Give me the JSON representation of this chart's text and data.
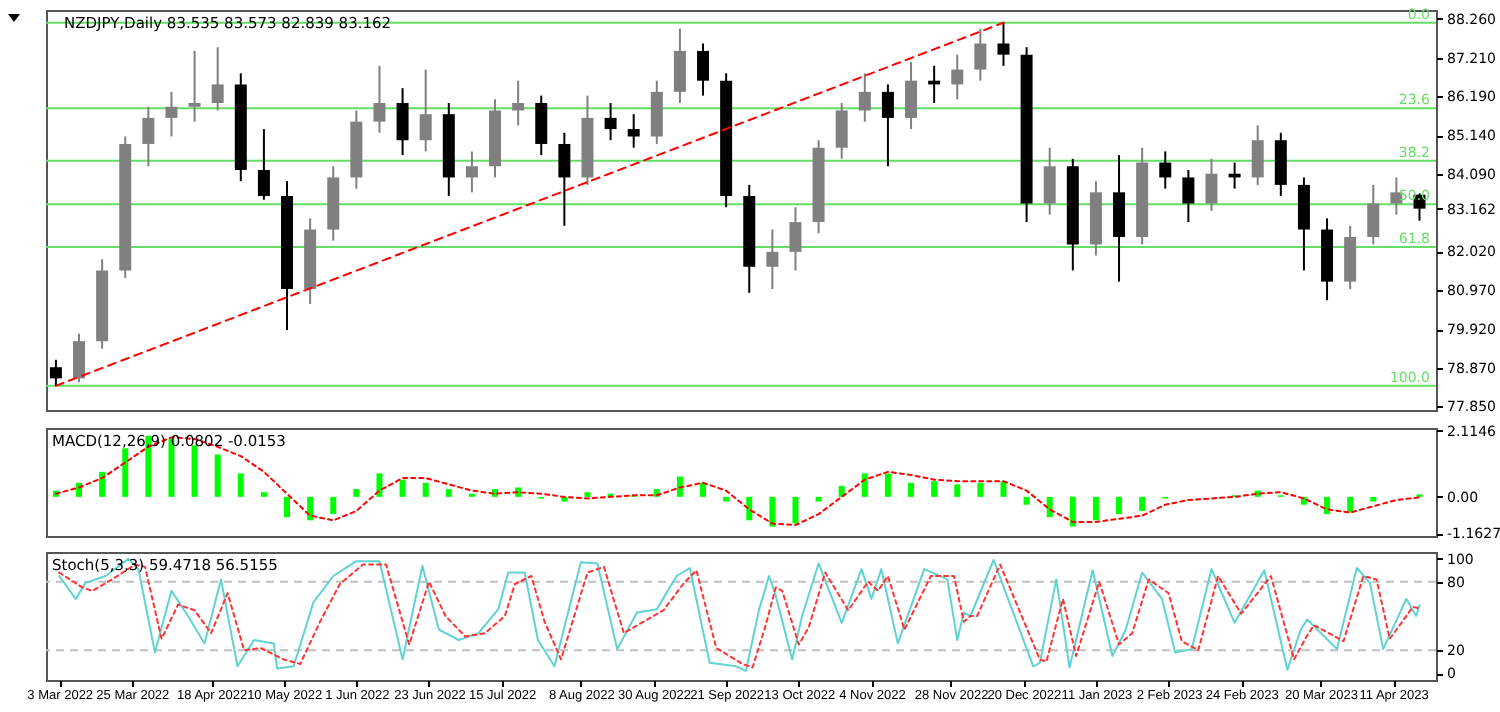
{
  "chart_data": [
    {
      "type": "candlestick",
      "title": "NZDJPY,Daily  83.535 83.573 82.839 83.162",
      "x": [
        "2022-03-02",
        "2022-03-09",
        "2022-03-16",
        "2022-03-23",
        "2022-03-30",
        "2022-04-06",
        "2022-04-13",
        "2022-04-20",
        "2022-04-27",
        "2022-05-04",
        "2022-05-11",
        "2022-05-18",
        "2022-05-25",
        "2022-06-01",
        "2022-06-08",
        "2022-06-15",
        "2022-06-22",
        "2022-06-29",
        "2022-07-06",
        "2022-07-13",
        "2022-07-20",
        "2022-07-27",
        "2022-08-03",
        "2022-08-10",
        "2022-08-17",
        "2022-08-24",
        "2022-08-31",
        "2022-09-07",
        "2022-09-14",
        "2022-09-21",
        "2022-09-28",
        "2022-10-05",
        "2022-10-12",
        "2022-10-19",
        "2022-10-26",
        "2022-11-02",
        "2022-11-09",
        "2022-11-16",
        "2022-11-23",
        "2022-11-30",
        "2022-12-07",
        "2022-12-14",
        "2022-12-21",
        "2022-12-28",
        "2023-01-04",
        "2023-01-11",
        "2023-01-18",
        "2023-01-25",
        "2023-02-01",
        "2023-02-08",
        "2023-02-15",
        "2023-02-22",
        "2023-03-01",
        "2023-03-08",
        "2023-03-15",
        "2023-03-22",
        "2023-03-29",
        "2023-04-05",
        "2023-04-12",
        "2023-04-19"
      ],
      "ohlc": [
        [
          78.9,
          79.1,
          78.4,
          78.6
        ],
        [
          78.6,
          79.8,
          78.5,
          79.6
        ],
        [
          79.6,
          81.8,
          79.4,
          81.5
        ],
        [
          81.5,
          85.1,
          81.3,
          84.9
        ],
        [
          84.9,
          85.9,
          84.3,
          85.6
        ],
        [
          85.6,
          86.3,
          85.1,
          85.9
        ],
        [
          85.9,
          87.4,
          85.5,
          86.0
        ],
        [
          86.0,
          87.5,
          85.8,
          86.5
        ],
        [
          86.5,
          86.8,
          83.9,
          84.2
        ],
        [
          84.2,
          85.3,
          83.4,
          83.5
        ],
        [
          83.5,
          83.9,
          79.9,
          81.0
        ],
        [
          81.0,
          82.9,
          80.6,
          82.6
        ],
        [
          82.6,
          84.3,
          82.3,
          84.0
        ],
        [
          84.0,
          85.8,
          83.7,
          85.5
        ],
        [
          85.5,
          87.0,
          85.2,
          86.0
        ],
        [
          86.0,
          86.4,
          84.6,
          85.0
        ],
        [
          85.0,
          86.9,
          84.7,
          85.7
        ],
        [
          85.7,
          86.0,
          83.5,
          84.0
        ],
        [
          84.0,
          84.7,
          83.6,
          84.3
        ],
        [
          84.3,
          86.1,
          84.0,
          85.8
        ],
        [
          85.8,
          86.6,
          85.4,
          86.0
        ],
        [
          86.0,
          86.2,
          84.6,
          84.9
        ],
        [
          84.9,
          85.2,
          82.7,
          84.0
        ],
        [
          84.0,
          86.2,
          83.8,
          85.6
        ],
        [
          85.6,
          86.0,
          85.0,
          85.3
        ],
        [
          85.3,
          85.7,
          84.8,
          85.1
        ],
        [
          85.1,
          86.6,
          84.9,
          86.3
        ],
        [
          86.3,
          88.0,
          86.0,
          87.4
        ],
        [
          87.4,
          87.6,
          86.2,
          86.6
        ],
        [
          86.6,
          86.8,
          83.2,
          83.5
        ],
        [
          83.5,
          83.8,
          80.9,
          81.6
        ],
        [
          81.6,
          82.6,
          81.0,
          82.0
        ],
        [
          82.0,
          83.2,
          81.5,
          82.8
        ],
        [
          82.8,
          85.0,
          82.5,
          84.8
        ],
        [
          84.8,
          86.0,
          84.5,
          85.8
        ],
        [
          85.8,
          86.8,
          85.5,
          86.3
        ],
        [
          86.3,
          86.5,
          84.3,
          85.6
        ],
        [
          85.6,
          87.1,
          85.3,
          86.6
        ],
        [
          86.6,
          87.0,
          86.0,
          86.5
        ],
        [
          86.5,
          87.3,
          86.1,
          86.9
        ],
        [
          86.9,
          88.0,
          86.6,
          87.6
        ],
        [
          87.6,
          88.16,
          87.0,
          87.3
        ],
        [
          87.3,
          87.5,
          82.8,
          83.3
        ],
        [
          83.3,
          84.8,
          83.0,
          84.3
        ],
        [
          84.3,
          84.5,
          81.5,
          82.2
        ],
        [
          82.2,
          83.9,
          81.9,
          83.6
        ],
        [
          83.6,
          84.6,
          81.2,
          82.4
        ],
        [
          82.4,
          84.8,
          82.2,
          84.4
        ],
        [
          84.4,
          84.7,
          83.7,
          84.0
        ],
        [
          84.0,
          84.2,
          82.8,
          83.3
        ],
        [
          83.3,
          84.5,
          83.1,
          84.1
        ],
        [
          84.1,
          84.4,
          83.7,
          84.0
        ],
        [
          84.0,
          85.4,
          83.8,
          85.0
        ],
        [
          85.0,
          85.2,
          83.5,
          83.8
        ],
        [
          83.8,
          84.0,
          81.5,
          82.6
        ],
        [
          82.6,
          82.9,
          80.7,
          81.2
        ],
        [
          81.2,
          82.7,
          81.0,
          82.4
        ],
        [
          82.4,
          83.8,
          82.2,
          83.3
        ],
        [
          83.3,
          84.0,
          83.0,
          83.6
        ],
        [
          83.535,
          83.573,
          82.839,
          83.162
        ]
      ],
      "colors": [
        "#000000",
        "#808080",
        "#808080",
        "#808080",
        "#808080",
        "#808080",
        "#808080",
        "#808080",
        "#000000",
        "#000000",
        "#000000",
        "#808080",
        "#808080",
        "#808080",
        "#808080",
        "#000000",
        "#808080",
        "#000000",
        "#808080",
        "#808080",
        "#808080",
        "#000000",
        "#000000",
        "#808080",
        "#000000",
        "#000000",
        "#808080",
        "#808080",
        "#000000",
        "#000000",
        "#000000",
        "#808080",
        "#808080",
        "#808080",
        "#808080",
        "#808080",
        "#000000",
        "#808080",
        "#000000",
        "#808080",
        "#808080",
        "#000000",
        "#000000",
        "#808080",
        "#000000",
        "#808080",
        "#000000",
        "#808080",
        "#000000",
        "#000000",
        "#808080",
        "#000000",
        "#808080",
        "#000000",
        "#000000",
        "#000000",
        "#808080",
        "#808080",
        "#808080",
        "#000000"
      ],
      "series": [
        {
          "type": "line",
          "x": [
            "2022-03-02",
            "2022-12-14"
          ],
          "values": [
            78.4,
            88.16
          ],
          "color": "#ff0000",
          "line_style": "dashed"
        }
      ],
      "ref_lines": [
        {
          "axis": "y",
          "value": 88.16,
          "color": "#66dd66"
        },
        {
          "axis": "y",
          "value": 85.86,
          "color": "#66dd66"
        },
        {
          "axis": "y",
          "value": 84.45,
          "color": "#66dd66"
        },
        {
          "axis": "y",
          "value": 83.28,
          "color": "#66dd66"
        },
        {
          "axis": "y",
          "value": 82.13,
          "color": "#66dd66"
        },
        {
          "axis": "y",
          "value": 78.4,
          "color": "#66dd66"
        }
      ],
      "annotations": [
        "0.0",
        "23.6",
        "38.2",
        "50.0",
        "61.8",
        "100.0"
      ],
      "xlim": [
        "2022-02-27",
        "2023-04-24"
      ],
      "ylim": [
        77.75,
        88.5
      ],
      "yticks": [
        {
          "value": 88.26,
          "label": "88.260"
        },
        {
          "value": 87.21,
          "label": "87.210"
        },
        {
          "value": 86.19,
          "label": "86.190"
        },
        {
          "value": 85.14,
          "label": "85.140"
        },
        {
          "value": 84.09,
          "label": "84.090"
        },
        {
          "value": 83.162,
          "label": "83.162"
        },
        {
          "value": 82.02,
          "label": "82.020"
        },
        {
          "value": 80.97,
          "label": "80.970"
        },
        {
          "value": 79.92,
          "label": "79.920"
        },
        {
          "value": 78.87,
          "label": "78.870"
        },
        {
          "value": 77.85,
          "label": "77.850"
        }
      ],
      "tick_labels": "y"
    },
    {
      "type": "bar",
      "title": "MACD(12,26,9) 0.0802 -0.0153",
      "x": [
        "2022-03-02",
        "2022-03-09",
        "2022-03-16",
        "2022-03-23",
        "2022-03-30",
        "2022-04-06",
        "2022-04-13",
        "2022-04-20",
        "2022-04-27",
        "2022-05-04",
        "2022-05-11",
        "2022-05-18",
        "2022-05-25",
        "2022-06-01",
        "2022-06-08",
        "2022-06-15",
        "2022-06-22",
        "2022-06-29",
        "2022-07-06",
        "2022-07-13",
        "2022-07-20",
        "2022-07-27",
        "2022-08-03",
        "2022-08-10",
        "2022-08-17",
        "2022-08-24",
        "2022-08-31",
        "2022-09-07",
        "2022-09-14",
        "2022-09-21",
        "2022-09-28",
        "2022-10-05",
        "2022-10-12",
        "2022-10-19",
        "2022-10-26",
        "2022-11-02",
        "2022-11-09",
        "2022-11-16",
        "2022-11-23",
        "2022-11-30",
        "2022-12-07",
        "2022-12-14",
        "2022-12-21",
        "2022-12-28",
        "2023-01-04",
        "2023-01-11",
        "2023-01-18",
        "2023-01-25",
        "2023-02-01",
        "2023-02-08",
        "2023-02-15",
        "2023-02-22",
        "2023-03-01",
        "2023-03-08",
        "2023-03-15",
        "2023-03-22",
        "2023-03-29",
        "2023-04-05",
        "2023-04-12",
        "2023-04-19"
      ],
      "series": [
        {
          "type": "bar",
          "color": "#00ff00",
          "values": [
            0.2,
            0.45,
            0.8,
            1.55,
            1.95,
            1.85,
            1.65,
            1.35,
            0.75,
            0.15,
            -0.65,
            -0.75,
            -0.55,
            0.25,
            0.75,
            0.55,
            0.45,
            0.25,
            0.1,
            0.25,
            0.3,
            -0.05,
            -0.15,
            0.15,
            0.1,
            0.05,
            0.25,
            0.65,
            0.45,
            -0.15,
            -0.75,
            -0.95,
            -0.85,
            -0.15,
            0.35,
            0.75,
            0.75,
            0.45,
            0.5,
            0.4,
            0.45,
            0.5,
            -0.25,
            -0.65,
            -0.95,
            -0.75,
            -0.55,
            -0.45,
            -0.05,
            null,
            null,
            0.05,
            0.2,
            0.05,
            -0.25,
            -0.55,
            -0.5,
            -0.15,
            null,
            0.0802
          ]
        },
        {
          "type": "line",
          "color": "#ff0000",
          "line_style": "dotted",
          "values": [
            0.1,
            0.3,
            0.6,
            1.1,
            1.6,
            1.9,
            1.85,
            1.6,
            1.3,
            0.8,
            0.1,
            -0.6,
            -0.75,
            -0.45,
            0.2,
            0.6,
            0.6,
            0.4,
            0.2,
            0.1,
            0.15,
            0.1,
            0.0,
            -0.05,
            0.0,
            0.05,
            0.05,
            0.3,
            0.45,
            0.2,
            -0.4,
            -0.85,
            -0.9,
            -0.55,
            0.0,
            0.55,
            0.8,
            0.7,
            0.55,
            0.5,
            0.5,
            0.5,
            0.2,
            -0.4,
            -0.8,
            -0.8,
            -0.7,
            -0.6,
            -0.25,
            -0.1,
            -0.05,
            0.0,
            0.1,
            0.15,
            -0.05,
            -0.4,
            -0.5,
            -0.3,
            -0.1,
            -0.0153
          ]
        }
      ],
      "xlim": [
        "2022-02-27",
        "2023-04-24"
      ],
      "ylim": [
        -1.25,
        2.2
      ],
      "yticks": [
        {
          "value": 2.1146,
          "label": "2.1146"
        },
        {
          "value": 0,
          "label": "0.00"
        },
        {
          "value": -1.1627,
          "label": "-1.1627"
        }
      ],
      "tick_labels": "y"
    },
    {
      "type": "line",
      "title": "Stoch(5,3,3) 59.4718 56.5155",
      "series": [
        {
          "x": [
            "2022-03-03",
            "2022-03-08",
            "2022-03-11",
            "2022-03-17",
            "2022-03-24",
            "2022-03-27",
            "2022-04-01",
            "2022-04-06",
            "2022-04-11",
            "2022-04-16",
            "2022-04-21",
            "2022-04-26",
            "2022-05-01",
            "2022-05-07",
            "2022-05-08",
            "2022-05-13",
            "2022-05-19",
            "2022-05-25",
            "2022-06-01",
            "2022-06-08",
            "2022-06-15",
            "2022-06-21",
            "2022-06-26",
            "2022-07-02",
            "2022-07-08",
            "2022-07-14",
            "2022-07-17",
            "2022-07-22",
            "2022-07-26",
            "2022-07-31",
            "2022-08-08",
            "2022-08-13",
            "2022-08-19",
            "2022-08-25",
            "2022-08-31",
            "2022-09-06",
            "2022-09-10",
            "2022-09-16",
            "2022-09-24",
            "2022-09-27",
            "2022-10-01",
            "2022-10-04",
            "2022-10-06",
            "2022-10-11",
            "2022-10-14",
            "2022-10-19",
            "2022-10-26",
            "2022-11-01",
            "2022-11-04",
            "2022-11-07",
            "2022-11-12",
            "2022-11-20",
            "2022-11-27",
            "2022-11-30",
            "2022-12-02",
            "2022-12-04",
            "2022-12-11",
            "2022-12-23",
            "2022-12-25",
            "2022-12-30",
            "2023-01-03",
            "2023-01-10",
            "2023-01-16",
            "2023-01-20",
            "2023-01-25",
            "2023-01-31",
            "2023-02-04",
            "2023-02-09",
            "2023-02-15",
            "2023-02-22",
            "2023-03-03",
            "2023-03-10",
            "2023-03-14",
            "2023-03-16",
            "2023-03-25",
            "2023-03-31",
            "2023-04-04",
            "2023-04-08",
            "2023-04-15",
            "2023-04-18",
            "2023-04-19"
          ],
          "values": [
            85,
            65,
            79,
            85,
            100,
            91,
            18,
            72,
            50,
            26,
            82,
            6,
            29,
            26,
            4,
            6,
            62,
            85,
            98,
            98,
            12,
            94,
            38,
            29,
            35,
            56,
            88,
            88,
            29,
            6,
            97,
            96,
            21,
            53,
            56,
            85,
            92,
            9,
            6,
            2,
            56,
            85,
            68,
            12,
            50,
            96,
            44,
            91,
            65,
            91,
            26,
            91,
            82,
            29,
            53,
            50,
            99,
            6,
            9,
            82,
            5,
            90,
            15,
            38,
            88,
            65,
            18,
            21,
            91,
            44,
            90,
            3,
            38,
            47,
            21,
            92,
            79,
            21,
            65,
            50,
            59.4718
          ],
          "color": "#5fd3d3"
        },
        {
          "x": [
            "2022-03-03",
            "2022-03-10",
            "2022-03-13",
            "2022-03-19",
            "2022-03-26",
            "2022-03-29",
            "2022-04-03",
            "2022-04-08",
            "2022-04-13",
            "2022-04-18",
            "2022-04-23",
            "2022-04-28",
            "2022-05-03",
            "2022-05-10",
            "2022-05-15",
            "2022-05-21",
            "2022-05-27",
            "2022-06-03",
            "2022-06-10",
            "2022-06-17",
            "2022-06-23",
            "2022-06-28",
            "2022-07-04",
            "2022-07-10",
            "2022-07-16",
            "2022-07-19",
            "2022-07-24",
            "2022-07-28",
            "2022-08-02",
            "2022-08-10",
            "2022-08-15",
            "2022-08-21",
            "2022-08-27",
            "2022-09-02",
            "2022-09-08",
            "2022-09-12",
            "2022-09-18",
            "2022-09-26",
            "2022-09-29",
            "2022-10-03",
            "2022-10-06",
            "2022-10-08",
            "2022-10-13",
            "2022-10-16",
            "2022-10-21",
            "2022-10-28",
            "2022-11-03",
            "2022-11-06",
            "2022-11-09",
            "2022-11-14",
            "2022-11-22",
            "2022-11-29",
            "2022-12-02",
            "2022-12-04",
            "2022-12-06",
            "2022-12-13",
            "2022-12-25",
            "2022-12-27",
            "2023-01-01",
            "2023-01-05",
            "2023-01-12",
            "2023-01-18",
            "2023-01-22",
            "2023-01-27",
            "2023-02-02",
            "2023-02-06",
            "2023-02-11",
            "2023-02-17",
            "2023-02-24",
            "2023-03-05",
            "2023-03-12",
            "2023-03-16",
            "2023-03-18",
            "2023-03-27",
            "2023-04-02",
            "2023-04-06",
            "2023-04-10",
            "2023-04-17",
            "2023-04-19"
          ],
          "values": [
            88,
            75,
            72,
            82,
            95,
            93,
            30,
            60,
            55,
            35,
            70,
            20,
            22,
            12,
            8,
            45,
            78,
            95,
            95,
            25,
            80,
            50,
            32,
            35,
            50,
            78,
            85,
            45,
            12,
            88,
            93,
            35,
            45,
            55,
            78,
            90,
            22,
            8,
            5,
            42,
            75,
            72,
            25,
            40,
            88,
            55,
            80,
            72,
            85,
            38,
            85,
            85,
            45,
            50,
            50,
            95,
            12,
            10,
            65,
            15,
            80,
            25,
            35,
            82,
            70,
            28,
            20,
            85,
            52,
            85,
            12,
            33,
            42,
            28,
            85,
            82,
            30,
            58,
            56.5155
          ],
          "color": "#ff3333",
          "line_style": "dotted"
        }
      ],
      "ref_lines": [
        {
          "axis": "y",
          "value": 80,
          "color": "#c0c0c0",
          "line_style": "dashed"
        },
        {
          "axis": "y",
          "value": 20,
          "color": "#c0c0c0",
          "line_style": "dashed"
        }
      ],
      "xlim": [
        "2022-02-27",
        "2023-04-24"
      ],
      "ylim": [
        -6,
        106
      ],
      "yticks": [
        100,
        80,
        20,
        0
      ],
      "xticks": [
        {
          "value": "2022-03-03",
          "label": "3 Mar 2022"
        },
        {
          "value": "2022-03-25",
          "label": "25 Mar 2022"
        },
        {
          "value": "2022-04-18",
          "label": "18 Apr 2022"
        },
        {
          "value": "2022-05-10",
          "label": "10 May 2022"
        },
        {
          "value": "2022-06-01",
          "label": "1 Jun 2022"
        },
        {
          "value": "2022-06-23",
          "label": "23 Jun 2022"
        },
        {
          "value": "2022-07-15",
          "label": "15 Jul 2022"
        },
        {
          "value": "2022-08-08",
          "label": "8 Aug 2022"
        },
        {
          "value": "2022-08-30",
          "label": "30 Aug 2022"
        },
        {
          "value": "2022-09-21",
          "label": "21 Sep 2022"
        },
        {
          "value": "2022-10-13",
          "label": "13 Oct 2022"
        },
        {
          "value": "2022-11-04",
          "label": "4 Nov 2022"
        },
        {
          "value": "2022-11-28",
          "label": "28 Nov 2022"
        },
        {
          "value": "2022-12-20",
          "label": "20 Dec 2022"
        },
        {
          "value": "2023-01-11",
          "label": "11 Jan 2023"
        },
        {
          "value": "2023-02-02",
          "label": "2 Feb 2023"
        },
        {
          "value": "2023-02-24",
          "label": "24 Feb 2023"
        },
        {
          "value": "2023-03-20",
          "label": "20 Mar 2023"
        },
        {
          "value": "2023-04-11",
          "label": "11 Apr 2023"
        }
      ]
    }
  ]
}
